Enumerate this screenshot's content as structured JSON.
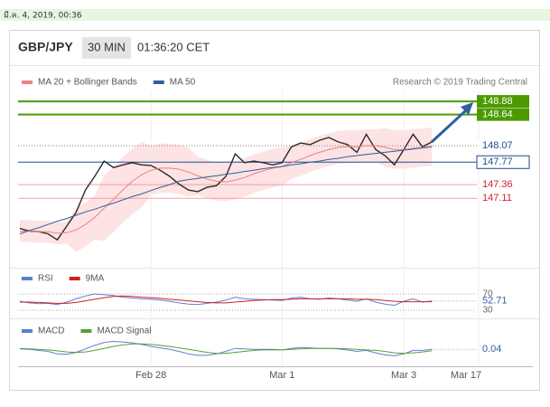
{
  "header": {
    "date": "มี.ค. 4, 2019, 00:36",
    "symbol": "GBP/JPY",
    "interval": "30 MIN",
    "time": "01:36:20 CET",
    "credit": "Research © 2019 Trading Central"
  },
  "chart_data": [
    {
      "type": "line",
      "categories": [
        null,
        null,
        null,
        null,
        null,
        null,
        null,
        null,
        null,
        null,
        null,
        null,
        null,
        null,
        "Feb 28",
        null,
        null,
        null,
        null,
        null,
        null,
        null,
        null,
        null,
        null,
        null,
        null,
        null,
        "Mar 1",
        null,
        null,
        null,
        null,
        null,
        null,
        null,
        null,
        null,
        null,
        null,
        null,
        "Mar 3",
        null,
        null,
        null,
        null,
        null,
        null,
        null,
        "Mar 17"
      ],
      "ylim": [
        145.94,
        149.08
      ],
      "series": [
        {
          "color": "#2b2b2b",
          "values": [
            146.56,
            146.51,
            146.5,
            146.46,
            146.35,
            146.6,
            146.85,
            147.26,
            147.51,
            147.79,
            147.67,
            147.72,
            147.76,
            147.72,
            147.71,
            147.62,
            147.51,
            147.37,
            147.26,
            147.23,
            147.31,
            147.34,
            147.51,
            147.92,
            147.76,
            147.79,
            147.76,
            147.72,
            147.76,
            148.05,
            148.12,
            148.09,
            148.17,
            148.22,
            148.14,
            148.09,
            147.95,
            148.28,
            148.0,
            147.89,
            147.72,
            148.0,
            148.28,
            148.05,
            148.14,
            null,
            null,
            null,
            null,
            null
          ]
        },
        {
          "name": "MA 20 + Bollinger Bands",
          "color": "#f08080",
          "band_color": "#fde3e3",
          "values": [
            146.51,
            146.51,
            146.5,
            146.5,
            146.47,
            146.48,
            146.53,
            146.63,
            146.76,
            146.93,
            147.09,
            147.26,
            147.42,
            147.54,
            147.62,
            147.66,
            147.66,
            147.64,
            147.59,
            147.52,
            147.46,
            147.42,
            147.41,
            147.44,
            147.49,
            147.56,
            147.61,
            147.66,
            147.69,
            147.76,
            147.82,
            147.89,
            147.95,
            148.0,
            148.04,
            148.05,
            148.05,
            148.07,
            148.07,
            148.04,
            148.0,
            148.0,
            148.02,
            148.04,
            148.05,
            null,
            null,
            null,
            null,
            null
          ],
          "upper": [
            146.71,
            146.71,
            146.7,
            146.7,
            146.67,
            146.68,
            146.93,
            147.03,
            147.16,
            147.53,
            147.69,
            147.86,
            148.02,
            148.14,
            148.07,
            148.11,
            148.11,
            148.09,
            148.04,
            147.87,
            147.81,
            147.77,
            147.76,
            147.79,
            147.84,
            147.91,
            147.96,
            148.01,
            148.04,
            148.06,
            148.12,
            148.19,
            148.25,
            148.3,
            148.34,
            148.35,
            148.35,
            148.37,
            148.37,
            148.39,
            148.35,
            148.35,
            148.37,
            148.39,
            148.4,
            null,
            null,
            null,
            null,
            null
          ],
          "lower": [
            146.31,
            146.31,
            146.3,
            146.3,
            146.27,
            146.28,
            146.13,
            146.23,
            146.36,
            146.33,
            146.49,
            146.66,
            146.82,
            146.94,
            147.17,
            147.21,
            147.21,
            147.19,
            147.14,
            147.17,
            147.11,
            147.07,
            147.06,
            147.09,
            147.14,
            147.21,
            147.26,
            147.31,
            147.34,
            147.46,
            147.52,
            147.59,
            147.65,
            147.7,
            147.74,
            147.75,
            147.75,
            147.77,
            147.77,
            147.69,
            147.65,
            147.65,
            147.67,
            147.69,
            147.7,
            null,
            null,
            null,
            null,
            null
          ]
        },
        {
          "name": "MA 50",
          "color": "#2f5f9e",
          "values": [
            146.46,
            146.52,
            146.57,
            146.63,
            146.69,
            146.74,
            146.8,
            146.86,
            146.91,
            146.97,
            147.02,
            147.08,
            147.14,
            147.19,
            147.25,
            147.31,
            147.36,
            147.42,
            147.45,
            147.47,
            147.5,
            147.52,
            147.55,
            147.57,
            147.6,
            147.62,
            147.65,
            147.67,
            147.69,
            147.72,
            147.74,
            147.77,
            147.79,
            147.82,
            147.84,
            147.87,
            147.89,
            147.91,
            147.93,
            147.95,
            147.97,
            147.99,
            148.01,
            148.03,
            148.05,
            null,
            null,
            null,
            null,
            null
          ]
        }
      ],
      "levels": [
        {
          "value": 148.88,
          "color": "#4c9a00",
          "style": "box"
        },
        {
          "value": 148.64,
          "color": "#4c9a00",
          "style": "box"
        },
        {
          "value": 148.07,
          "color": "#888888",
          "text_color": "#1f4e8c",
          "style": "dotted"
        },
        {
          "value": 147.77,
          "color": "#1f4e8c",
          "text_color": "#1f4e8c",
          "style": "outline"
        },
        {
          "value": 147.36,
          "color": "#f2a0a8",
          "text_color": "#d0202e",
          "style": "plain"
        },
        {
          "value": 147.11,
          "color": "#f2a0a8",
          "text_color": "#d0202e",
          "style": "plain"
        }
      ]
    },
    {
      "type": "line",
      "ylim": [
        0,
        100
      ],
      "yticks": [
        30,
        70
      ],
      "series": [
        {
          "name": "RSI",
          "color": "#5b7fd6",
          "values": [
            52,
            48,
            46,
            47,
            44,
            50,
            58,
            65,
            70,
            68,
            66,
            62,
            60,
            58,
            57,
            55,
            52,
            48,
            45,
            44,
            47,
            50,
            55,
            62,
            58,
            57,
            56,
            55,
            54,
            60,
            62,
            58,
            57,
            60,
            58,
            55,
            52,
            58,
            50,
            45,
            42,
            52,
            58,
            50,
            52.71,
            null,
            null,
            null,
            null,
            null
          ]
        },
        {
          "name": "9MA",
          "color": "#d02020",
          "values": [
            50,
            50,
            49,
            48,
            47,
            47,
            49,
            53,
            57,
            61,
            64,
            65,
            64,
            62,
            61,
            59,
            57,
            55,
            53,
            51,
            49,
            48,
            48,
            50,
            52,
            54,
            55,
            56,
            56,
            57,
            58,
            58,
            58,
            58,
            58,
            58,
            57,
            57,
            56,
            54,
            52,
            51,
            51,
            51,
            51,
            null,
            null,
            null,
            null,
            null
          ]
        }
      ]
    },
    {
      "type": "line",
      "ylim": [
        -0.3,
        0.3
      ],
      "series": [
        {
          "name": "MACD",
          "color": "#5b7fd6",
          "values": [
            0.05,
            0.04,
            0.02,
            0,
            -0.05,
            -0.06,
            -0.02,
            0.05,
            0.12,
            0.18,
            0.2,
            0.19,
            0.17,
            0.14,
            0.1,
            0.07,
            0.04,
            0,
            -0.05,
            -0.08,
            -0.08,
            -0.05,
            0,
            0.06,
            0.05,
            0.04,
            0.04,
            0.04,
            0.03,
            0.06,
            0.08,
            0.07,
            0.06,
            0.06,
            0.05,
            0.03,
            0,
            0.02,
            -0.03,
            -0.07,
            -0.09,
            -0.05,
            0.02,
            0.02,
            0.04,
            null,
            null,
            null,
            null,
            null
          ]
        },
        {
          "name": "MACD Signal",
          "color": "#5aa02c",
          "values": [
            0.06,
            0.05,
            0.04,
            0.03,
            0.01,
            -0.01,
            -0.02,
            -0.01,
            0.02,
            0.06,
            0.1,
            0.13,
            0.15,
            0.15,
            0.14,
            0.12,
            0.1,
            0.07,
            0.04,
            0.01,
            -0.02,
            -0.04,
            -0.04,
            -0.02,
            0,
            0.02,
            0.03,
            0.03,
            0.03,
            0.04,
            0.05,
            0.06,
            0.06,
            0.06,
            0.06,
            0.05,
            0.04,
            0.03,
            0.02,
            0,
            -0.03,
            -0.04,
            -0.03,
            -0.01,
            0.01,
            null,
            null,
            null,
            null,
            null
          ]
        }
      ]
    }
  ]
}
